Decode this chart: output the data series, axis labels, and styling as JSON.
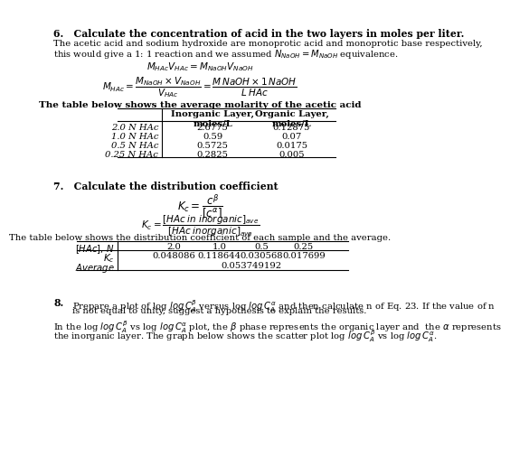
{
  "bg_color": "#ffffff",
  "q6_heading": "6.   Calculate the concentration of acid in the two layers in moles per liter.",
  "table1_col1": [
    "2.0 N HAc",
    "1.0 N HAc",
    "0.5 N HAc",
    "0.25 N HAc"
  ],
  "table1_col2": [
    "2.6775",
    "0.59",
    "0.5725",
    "0.2825"
  ],
  "table1_col3": [
    "0.12875",
    "0.07",
    "0.0175",
    "0.005"
  ],
  "q7_heading": "7.   Calculate the distribution coefficient",
  "table2_title": "The table below shows the distribution coefficient of each sample and the average.",
  "kc_vals": [
    "0.048086",
    "0.118644",
    "0.030568",
    "0.017699"
  ],
  "kc_headers": [
    "2.0",
    "1.0",
    "0.5",
    "0.25"
  ],
  "kc_average": "0.053749192",
  "q8_heading": "8."
}
